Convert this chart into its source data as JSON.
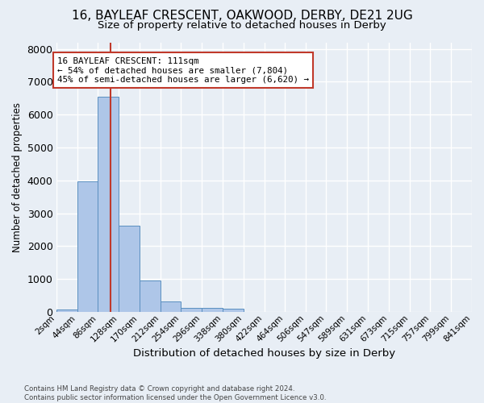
{
  "title_line1": "16, BAYLEAF CRESCENT, OAKWOOD, DERBY, DE21 2UG",
  "title_line2": "Size of property relative to detached houses in Derby",
  "xlabel": "Distribution of detached houses by size in Derby",
  "ylabel": "Number of detached properties",
  "footnote": "Contains HM Land Registry data © Crown copyright and database right 2024.\nContains public sector information licensed under the Open Government Licence v3.0.",
  "bar_edges": [
    2,
    44,
    86,
    128,
    170,
    212,
    254,
    296,
    338,
    380,
    422,
    464,
    506,
    547,
    589,
    631,
    673,
    715,
    757,
    799,
    841
  ],
  "bar_heights": [
    70,
    3980,
    6550,
    2620,
    960,
    310,
    130,
    110,
    85,
    0,
    0,
    0,
    0,
    0,
    0,
    0,
    0,
    0,
    0,
    0
  ],
  "bar_color": "#aec6e8",
  "bar_edge_color": "#5a8fc0",
  "property_size": 111,
  "vline_color": "#c0392b",
  "annotation_text": "16 BAYLEAF CRESCENT: 111sqm\n← 54% of detached houses are smaller (7,804)\n45% of semi-detached houses are larger (6,620) →",
  "annotation_box_color": "#c0392b",
  "ylim": [
    0,
    8200
  ],
  "yticks": [
    0,
    1000,
    2000,
    3000,
    4000,
    5000,
    6000,
    7000,
    8000
  ],
  "bg_color": "#e8eef5",
  "plot_bg_color": "#e8eef5",
  "grid_color": "#ffffff",
  "tick_label_size": 7.5,
  "title1_fontsize": 11,
  "title2_fontsize": 9.5,
  "ylabel_fontsize": 8.5,
  "xlabel_fontsize": 9.5
}
